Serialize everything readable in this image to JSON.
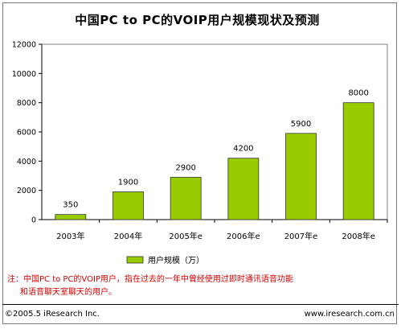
{
  "chart_data": {
    "type": "bar",
    "title": "中国PC to PC的VOIP用户规模现状及预测",
    "categories": [
      "2003年",
      "2004年",
      "2005年e",
      "2006年e",
      "2007年e",
      "2008年e"
    ],
    "series": [
      {
        "name": "用户规模（万）",
        "values": [
          350,
          1900,
          2900,
          4200,
          5900,
          8000
        ]
      }
    ],
    "data_labels": [
      "350",
      "1900",
      "2900",
      "4200",
      "5900",
      "8000"
    ],
    "ylim": [
      0,
      12000
    ],
    "yticks": [
      0,
      2000,
      4000,
      6000,
      8000,
      10000,
      12000
    ],
    "ytick_labels": [
      "0",
      "2000",
      "4000",
      "6000",
      "8000",
      "10000",
      "12000"
    ],
    "xlabel": "",
    "ylabel": "",
    "grid": false,
    "legend_position": "bottom",
    "colors": {
      "bar": "#99cc00",
      "bar_edge": "#333333",
      "plot_bg": "#ffffff"
    }
  },
  "note": {
    "line1": "注：中国PC to PC的VOIP用户，指在过去的一年中曾经使用过即时通讯语音功能",
    "line2": "和语音聊天室聊天的用户。",
    "color": "#d40000"
  },
  "footer": {
    "copyright": "©2005.5 iResearch Inc.",
    "url": "www.iresearch.com.cn"
  }
}
